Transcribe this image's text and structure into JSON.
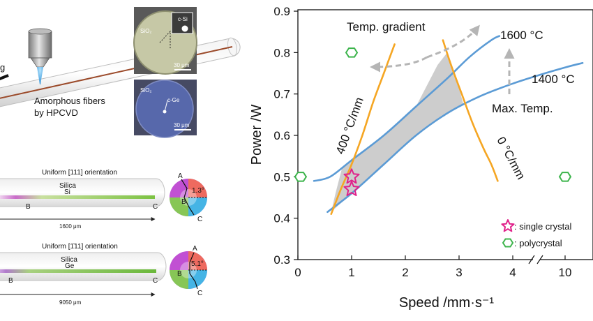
{
  "left_panel": {
    "laser_label": "g",
    "fiber_label_line1": "Amorphous fibers",
    "fiber_label_line2": "by HPCVD",
    "micro_top": {
      "material": "SiO₂",
      "inset": "c-Si",
      "scale": "30 μm"
    },
    "micro_bottom": {
      "material": "SiO₂",
      "label": "c-Ge",
      "scale": "30 μm"
    },
    "fiber_si": {
      "title": "Uniform [111] orientation",
      "cladding": "Silica",
      "core": "Si",
      "point_b": "B",
      "point_c": "C",
      "length": "1600 μm",
      "wheel": {
        "a": "A",
        "b": "B",
        "c": "C",
        "angle": "1.3°"
      }
    },
    "fiber_ge": {
      "title": "Uniform [1̄11] orientation",
      "cladding": "Silica",
      "core": "Ge",
      "point_b": "B",
      "point_c": "C",
      "length": "9050 μm",
      "wheel": {
        "a": "A",
        "b": "B",
        "c": "C",
        "angle": "5.1°"
      }
    }
  },
  "chart_data": {
    "type": "line",
    "xlabel": "Speed /mm·s⁻¹",
    "ylabel": "Power /W",
    "xlim": [
      -0.2,
      10.8
    ],
    "ylim": [
      0.3,
      0.9
    ],
    "x_ticks": [
      0,
      1,
      2,
      3,
      4,
      10
    ],
    "x_tick_labels": [
      "0",
      "1",
      "2",
      "3",
      "4",
      "10"
    ],
    "y_ticks": [
      0.3,
      0.4,
      0.5,
      0.6,
      0.7,
      0.8,
      0.9
    ],
    "y_tick_labels": [
      "0.3",
      "0.4",
      "0.5",
      "0.6",
      "0.7",
      "0.8",
      "0.9"
    ],
    "axis_break_between": [
      4,
      10
    ],
    "series": [
      {
        "name": "1600 °C",
        "color": "#5b9bd5",
        "points": [
          [
            0.3,
            0.49
          ],
          [
            0.6,
            0.5
          ],
          [
            1.0,
            0.54
          ],
          [
            1.6,
            0.6
          ],
          [
            2.2,
            0.67
          ],
          [
            2.8,
            0.74
          ],
          [
            3.2,
            0.79
          ],
          [
            3.6,
            0.83
          ],
          [
            3.75,
            0.84
          ]
        ]
      },
      {
        "name": "1400 °C",
        "color": "#5b9bd5",
        "points": [
          [
            0.55,
            0.415
          ],
          [
            1.0,
            0.46
          ],
          [
            1.6,
            0.53
          ],
          [
            2.2,
            0.6
          ],
          [
            2.8,
            0.655
          ],
          [
            3.4,
            0.695
          ],
          [
            4.0,
            0.725
          ],
          [
            4.6,
            0.75
          ],
          [
            5.0,
            0.765
          ],
          [
            5.3,
            0.775
          ]
        ]
      },
      {
        "name": "400 °C/mm",
        "color": "#f5a623",
        "points": [
          [
            0.62,
            0.41
          ],
          [
            0.8,
            0.47
          ],
          [
            1.0,
            0.53
          ],
          [
            1.2,
            0.6
          ],
          [
            1.4,
            0.68
          ],
          [
            1.6,
            0.75
          ],
          [
            1.8,
            0.82
          ]
        ]
      },
      {
        "name": "0 °C/mm",
        "color": "#f5a623",
        "points": [
          [
            2.7,
            0.83
          ],
          [
            2.85,
            0.77
          ],
          [
            3.05,
            0.7
          ],
          [
            3.25,
            0.63
          ],
          [
            3.45,
            0.57
          ],
          [
            3.6,
            0.53
          ],
          [
            3.72,
            0.49
          ]
        ]
      }
    ],
    "shaded_region_color": "#c8c8c8",
    "markers": {
      "single_crystal": {
        "label": ": single crystal",
        "color": "#e0218a",
        "points": [
          [
            1.0,
            0.5
          ],
          [
            1.0,
            0.47
          ]
        ]
      },
      "polycrystal": {
        "label": ": polycrystal",
        "color": "#3cb44b",
        "points": [
          [
            0.05,
            0.5
          ],
          [
            1.0,
            0.8
          ],
          [
            10.0,
            0.5
          ]
        ]
      }
    },
    "annotations": [
      {
        "text": "Temp. gradient"
      },
      {
        "text": "Max. Temp."
      },
      {
        "text": "1600 °C"
      },
      {
        "text": "1400 °C"
      },
      {
        "text": "400 °C/mm"
      },
      {
        "text": "0 °C/mm"
      }
    ]
  }
}
